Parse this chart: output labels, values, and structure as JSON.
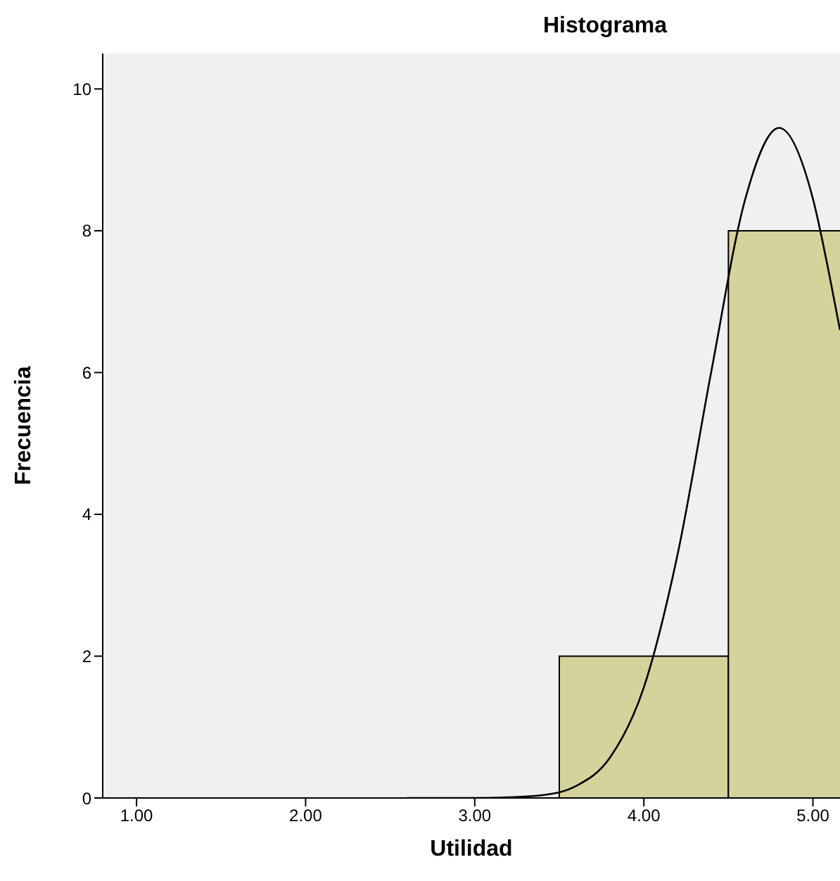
{
  "chart_data": {
    "type": "histogram",
    "title": "Histograma",
    "xlabel": "Utilidad",
    "ylabel": "Frecuencia",
    "bins": [
      3.5,
      4.5,
      5.5
    ],
    "values": [
      2,
      8
    ],
    "color": "#d4d39c",
    "series": [
      {
        "type": "line",
        "color": "#000000",
        "x": [
          2.6,
          2.8,
          3.0,
          3.2,
          3.4,
          3.6,
          3.8,
          4.0,
          4.2,
          4.4,
          4.6,
          4.8,
          5.0,
          5.1,
          5.16
        ],
        "values": [
          0,
          0,
          0,
          0.01,
          0.04,
          0.17,
          0.57,
          1.56,
          3.44,
          6.03,
          8.45,
          9.45,
          8.45,
          7.34,
          6.6
        ]
      }
    ],
    "xlim": [
      0.8,
      5.16
    ],
    "xticks": [
      {
        "value": 1,
        "label": "1.00"
      },
      {
        "value": 2,
        "label": "2.00"
      },
      {
        "value": 3,
        "label": "3.00"
      },
      {
        "value": 4,
        "label": "4.00"
      },
      {
        "value": 5,
        "label": "5.00"
      }
    ],
    "ylim": [
      0,
      10.5
    ],
    "yticks": [
      0,
      2,
      4,
      6,
      8,
      10
    ],
    "grid": false,
    "legend": false,
    "marker": "none",
    "line_style": "solid"
  }
}
